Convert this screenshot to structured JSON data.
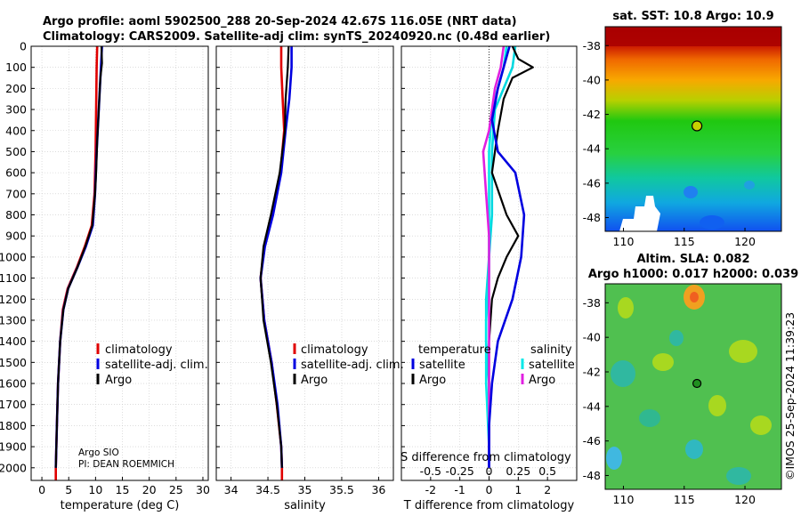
{
  "header": {
    "line1": "Argo profile: aoml 5902500_288 20-Sep-2024 42.67S 116.05E (NRT data)",
    "line2": "Climatology: CARS2009. Satellite-adj clim: synTS_20240920.nc (0.48d earlier)"
  },
  "colors": {
    "climatology": "#e00000",
    "satellite": "#0000e0",
    "argo": "#000000",
    "sat_t": "#00d8e0",
    "sat_s": "#00e8e8",
    "argo_s": "#e020e0"
  },
  "chart_data": [
    {
      "type": "line",
      "id": "temperature",
      "xlabel": "temperature (deg C)",
      "xlim": [
        -2,
        31
      ],
      "ylim": [
        2060,
        0
      ],
      "xticks": [
        0,
        5,
        10,
        15,
        20,
        25,
        30
      ],
      "xtick_labels": [
        "0",
        "5",
        "10",
        "15",
        "20",
        "25",
        "30"
      ],
      "yticks": [
        0,
        100,
        200,
        300,
        400,
        500,
        600,
        700,
        800,
        900,
        1000,
        1100,
        1200,
        1300,
        1400,
        1500,
        1600,
        1700,
        1800,
        1900,
        2000
      ],
      "ytick_labels": [
        "0",
        "100",
        "200",
        "300",
        "400",
        "500",
        "600",
        "700",
        "800",
        "900",
        "1000",
        "1100",
        "1200",
        "1300",
        "1400",
        "1500",
        "1600",
        "1700",
        "1800",
        "1900",
        "2000"
      ],
      "legend": [
        "climatology",
        "satellite-adj. clim.",
        "Argo"
      ],
      "annotations": [
        "Argo SIO",
        "PI: DEAN ROEMMICH"
      ],
      "series": [
        {
          "name": "climatology",
          "color_key": "climatology",
          "points": [
            [
              10.3,
              0
            ],
            [
              10.2,
              100
            ],
            [
              10.1,
              300
            ],
            [
              10.0,
              500
            ],
            [
              9.8,
              700
            ],
            [
              9.3,
              850
            ],
            [
              8.0,
              950
            ],
            [
              6.5,
              1050
            ],
            [
              4.8,
              1150
            ],
            [
              3.9,
              1250
            ],
            [
              3.4,
              1400
            ],
            [
              3.0,
              1600
            ],
            [
              2.8,
              1800
            ],
            [
              2.6,
              2000
            ],
            [
              2.6,
              2060
            ]
          ]
        },
        {
          "name": "satellite-adj. clim.",
          "color_key": "satellite",
          "points": [
            [
              11.2,
              0
            ],
            [
              11.0,
              100
            ],
            [
              10.6,
              300
            ],
            [
              10.2,
              500
            ],
            [
              9.9,
              700
            ],
            [
              9.5,
              850
            ],
            [
              8.2,
              950
            ],
            [
              6.6,
              1050
            ],
            [
              4.9,
              1150
            ],
            [
              4.0,
              1250
            ],
            [
              3.4,
              1400
            ],
            [
              3.0,
              1600
            ],
            [
              2.8,
              1800
            ],
            [
              2.6,
              2000
            ]
          ]
        },
        {
          "name": "Argo",
          "color_key": "argo",
          "points": [
            [
              11.1,
              0
            ],
            [
              11.2,
              80
            ],
            [
              10.9,
              150
            ],
            [
              10.6,
              300
            ],
            [
              10.3,
              450
            ],
            [
              10.1,
              600
            ],
            [
              9.9,
              700
            ],
            [
              9.4,
              850
            ],
            [
              8.1,
              950
            ],
            [
              6.6,
              1050
            ],
            [
              4.9,
              1150
            ],
            [
              4.0,
              1250
            ],
            [
              3.4,
              1400
            ],
            [
              3.0,
              1600
            ],
            [
              2.8,
              1800
            ],
            [
              2.6,
              2000
            ]
          ]
        }
      ]
    },
    {
      "type": "line",
      "id": "salinity",
      "xlabel": "salinity",
      "xlim": [
        33.8,
        36.2
      ],
      "ylim": [
        2060,
        0
      ],
      "xticks": [
        34,
        34.5,
        35,
        35.5,
        36
      ],
      "xtick_labels": [
        "34",
        "34.5",
        "35",
        "35.5",
        "36"
      ],
      "legend": [
        "climatology",
        "satellite-adj. clim.",
        "Argo"
      ],
      "series": [
        {
          "name": "climatology",
          "color_key": "climatology",
          "points": [
            [
              34.68,
              0
            ],
            [
              34.68,
              100
            ],
            [
              34.7,
              250
            ],
            [
              34.72,
              400
            ],
            [
              34.67,
              600
            ],
            [
              34.55,
              800
            ],
            [
              34.45,
              950
            ],
            [
              34.4,
              1100
            ],
            [
              34.45,
              1300
            ],
            [
              34.55,
              1500
            ],
            [
              34.62,
              1700
            ],
            [
              34.68,
              1900
            ],
            [
              34.69,
              2000
            ],
            [
              34.69,
              2060
            ]
          ]
        },
        {
          "name": "satellite-adj. clim.",
          "color_key": "satellite",
          "points": [
            [
              34.82,
              0
            ],
            [
              34.82,
              100
            ],
            [
              34.79,
              250
            ],
            [
              34.74,
              400
            ],
            [
              34.68,
              600
            ],
            [
              34.57,
              800
            ],
            [
              34.46,
              950
            ],
            [
              34.4,
              1100
            ],
            [
              34.45,
              1300
            ],
            [
              34.55,
              1500
            ],
            [
              34.63,
              1700
            ],
            [
              34.68,
              1900
            ],
            [
              34.69,
              2000
            ]
          ]
        },
        {
          "name": "Argo",
          "color_key": "argo",
          "points": [
            [
              34.78,
              0
            ],
            [
              34.77,
              100
            ],
            [
              34.74,
              250
            ],
            [
              34.73,
              400
            ],
            [
              34.66,
              600
            ],
            [
              34.54,
              800
            ],
            [
              34.44,
              950
            ],
            [
              34.4,
              1100
            ],
            [
              34.44,
              1300
            ],
            [
              34.54,
              1500
            ],
            [
              34.62,
              1700
            ],
            [
              34.68,
              1900
            ],
            [
              34.69,
              2000
            ]
          ]
        }
      ]
    },
    {
      "type": "line",
      "id": "difference",
      "xlabel": "T difference from climatology",
      "xlabel_top": "S difference from climatology",
      "xlim": [
        -3,
        3
      ],
      "ylim": [
        2060,
        0
      ],
      "xticks": [
        -2,
        -1,
        0,
        1,
        2
      ],
      "xtick_labels": [
        "-2",
        "-1",
        "0",
        "1",
        "2"
      ],
      "sticks": [
        -0.5,
        -0.25,
        0,
        0.25,
        0.5
      ],
      "stick_labels": [
        "-0.5",
        "-0.25",
        "0",
        "0.25",
        "0.5"
      ],
      "legend_t_title": "temperature",
      "legend_s_title": "salinity",
      "legend": [
        "satellite",
        "Argo"
      ],
      "series": [
        {
          "name": "satellite T",
          "color_key": "sat_t",
          "points": [
            [
              0.9,
              0
            ],
            [
              0.8,
              100
            ],
            [
              0.5,
              200
            ],
            [
              0.2,
              300
            ],
            [
              0.1,
              500
            ],
            [
              0.1,
              800
            ],
            [
              0.0,
              1000
            ],
            [
              -0.1,
              1200
            ],
            [
              -0.1,
              1400
            ],
            [
              0.0,
              1600
            ],
            [
              0.0,
              1800
            ],
            [
              0.0,
              2000
            ]
          ]
        },
        {
          "name": "Argo T",
          "color_key": "argo",
          "points": [
            [
              0.8,
              0
            ],
            [
              1.0,
              60
            ],
            [
              1.5,
              100
            ],
            [
              0.8,
              150
            ],
            [
              0.5,
              250
            ],
            [
              0.3,
              400
            ],
            [
              0.1,
              600
            ],
            [
              0.6,
              800
            ],
            [
              1.0,
              900
            ],
            [
              0.6,
              1000
            ],
            [
              0.3,
              1100
            ],
            [
              0.1,
              1200
            ],
            [
              0.0,
              1400
            ],
            [
              0.0,
              1600
            ],
            [
              0.0,
              1800
            ],
            [
              0.0,
              2000
            ]
          ]
        },
        {
          "name": "satellite S",
          "color_key": "sat_s",
          "points": [
            [
              0.6,
              0
            ],
            [
              0.5,
              100
            ],
            [
              0.3,
              200
            ],
            [
              0.1,
              300
            ],
            [
              0.0,
              500
            ],
            [
              0.0,
              800
            ],
            [
              0.0,
              1100
            ],
            [
              -0.1,
              1300
            ],
            [
              -0.1,
              1600
            ],
            [
              0.0,
              1900
            ],
            [
              0.0,
              2000
            ]
          ]
        },
        {
          "name": "Argo S",
          "color_key": "argo_s",
          "points": [
            [
              0.5,
              0
            ],
            [
              0.4,
              100
            ],
            [
              0.2,
              200
            ],
            [
              0.1,
              300
            ],
            [
              0.0,
              400
            ],
            [
              -0.2,
              500
            ],
            [
              -0.1,
              700
            ],
            [
              0.0,
              900
            ],
            [
              0.0,
              1100
            ],
            [
              0.0,
              1300
            ],
            [
              0.0,
              1500
            ],
            [
              0.0,
              1700
            ],
            [
              0.0,
              2000
            ]
          ]
        },
        {
          "name": "satellite total",
          "color_key": "satellite",
          "points": [
            [
              0.7,
              0
            ],
            [
              0.5,
              100
            ],
            [
              0.3,
              200
            ],
            [
              0.1,
              350
            ],
            [
              0.3,
              500
            ],
            [
              0.9,
              600
            ],
            [
              1.2,
              800
            ],
            [
              1.1,
              1000
            ],
            [
              0.8,
              1200
            ],
            [
              0.3,
              1400
            ],
            [
              0.1,
              1600
            ],
            [
              0.0,
              1800
            ],
            [
              0.0,
              2000
            ]
          ]
        }
      ]
    },
    {
      "type": "heatmap",
      "id": "sst-map",
      "title": "sat. SST: 10.8 Argo: 10.9",
      "xlim": [
        108.5,
        123
      ],
      "ylim": [
        -48.8,
        -36.9
      ],
      "xticks": [
        110,
        115,
        120
      ],
      "xtick_labels": [
        "110",
        "115",
        "120"
      ],
      "yticks": [
        -38,
        -40,
        -42,
        -44,
        -46,
        -48
      ],
      "ytick_labels": [
        "-38",
        "-40",
        "-42",
        "-44",
        "-46",
        "-48"
      ],
      "marker": [
        116.05,
        -42.67
      ]
    },
    {
      "type": "heatmap",
      "id": "sla-map",
      "title_line1": "Altim. SLA: 0.082",
      "title_line2": "Argo h1000: 0.017 h2000: 0.039",
      "xlim": [
        108.5,
        123
      ],
      "ylim": [
        -48.8,
        -36.9
      ],
      "xticks": [
        110,
        115,
        120
      ],
      "xtick_labels": [
        "110",
        "115",
        "120"
      ],
      "yticks": [
        -38,
        -40,
        -42,
        -44,
        -46,
        -48
      ],
      "ytick_labels": [
        "-38",
        "-40",
        "-42",
        "-44",
        "-46",
        "-48"
      ],
      "marker": [
        116.05,
        -42.67
      ]
    }
  ],
  "credit": "©IMOS 25-Sep-2024 11:39:23"
}
